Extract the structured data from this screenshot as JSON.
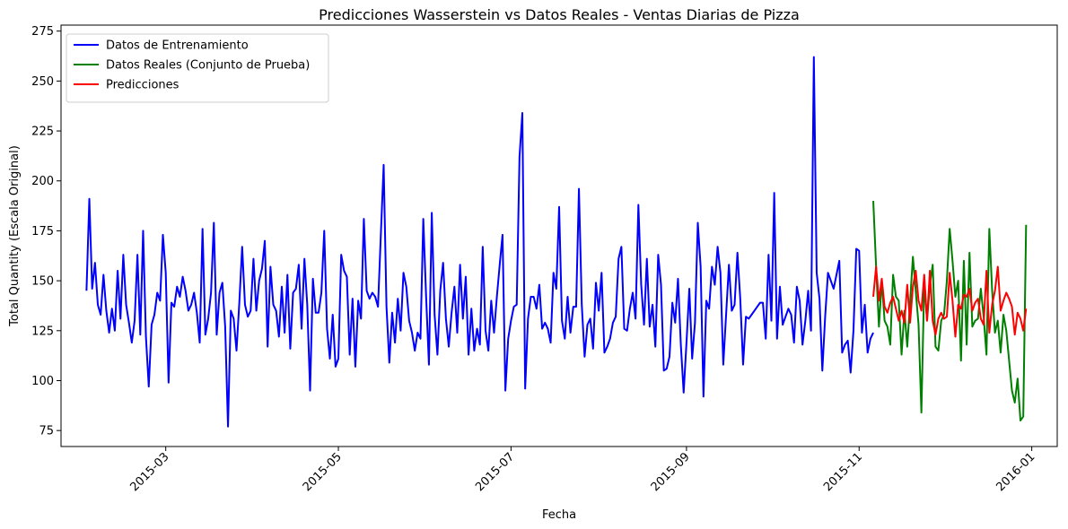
{
  "chart_data": {
    "type": "line",
    "title": "Predicciones Wasserstein vs Datos Reales - Ventas Diarias de Pizza",
    "xlabel": "Fecha",
    "ylabel": "Total Quantity (Escala Original)",
    "xlim": [
      "2015-01-23",
      "2016-01-10"
    ],
    "ylim": [
      67,
      278
    ],
    "yticks": [
      75,
      100,
      125,
      150,
      175,
      200,
      225,
      250,
      275
    ],
    "xticks": [
      {
        "date": "2015-03-01",
        "label": "2015-03"
      },
      {
        "date": "2015-05-01",
        "label": "2015-05"
      },
      {
        "date": "2015-07-01",
        "label": "2015-07"
      },
      {
        "date": "2015-09-01",
        "label": "2015-09"
      },
      {
        "date": "2015-11-01",
        "label": "2015-11"
      },
      {
        "date": "2016-01-01",
        "label": "2016-01"
      }
    ],
    "grid": false,
    "legend_position": "top-left",
    "series": [
      {
        "name": "Datos de Entrenamiento",
        "color": "#0000ff",
        "start": "2015-02-01",
        "values": [
          145,
          191,
          146,
          159,
          138,
          133,
          153,
          135,
          124,
          136,
          125,
          155,
          131,
          163,
          138,
          129,
          119,
          130,
          163,
          123,
          175,
          122,
          97,
          128,
          133,
          144,
          140,
          173,
          154,
          99,
          139,
          137,
          147,
          142,
          152,
          145,
          135,
          138,
          144,
          134,
          119,
          176,
          123,
          131,
          144,
          179,
          123,
          144,
          149,
          127,
          77,
          135,
          131,
          115,
          139,
          167,
          138,
          132,
          135,
          161,
          135,
          150,
          156,
          170,
          117,
          157,
          138,
          135,
          122,
          147,
          124,
          153,
          116,
          144,
          146,
          158,
          126,
          161,
          138,
          95,
          151,
          134,
          134,
          144,
          175,
          126,
          111,
          133,
          107,
          111,
          163,
          155,
          152,
          113,
          141,
          107,
          140,
          131,
          181,
          145,
          141,
          144,
          142,
          137,
          173,
          208,
          137,
          109,
          134,
          119,
          141,
          125,
          154,
          147,
          130,
          124,
          115,
          124,
          121,
          181,
          142,
          108,
          184,
          133,
          113,
          145,
          159,
          131,
          117,
          134,
          147,
          124,
          158,
          131,
          152,
          113,
          136,
          115,
          126,
          118,
          167,
          125,
          115,
          140,
          124,
          142,
          158,
          173,
          95,
          121,
          130,
          137,
          138,
          212,
          234,
          96,
          131,
          142,
          142,
          136,
          148,
          126,
          129,
          126,
          119,
          154,
          146,
          187,
          130,
          121,
          142,
          124,
          137,
          137,
          196,
          138,
          112,
          128,
          131,
          116,
          149,
          135,
          154,
          114,
          117,
          121,
          129,
          132,
          161,
          167,
          126,
          125,
          136,
          144,
          131,
          188,
          148,
          128,
          161,
          127,
          138,
          117,
          163,
          148,
          105,
          106,
          112,
          139,
          129,
          151,
          118,
          94,
          119,
          146,
          111,
          129,
          179,
          157,
          92,
          140,
          136,
          157,
          148,
          167,
          154,
          108,
          133,
          158,
          135,
          138,
          164,
          141,
          108,
          132,
          131,
          133,
          135,
          137,
          139,
          139,
          121,
          163,
          130,
          194,
          121,
          147,
          128,
          132,
          136,
          133,
          119,
          147,
          140,
          118,
          130,
          145,
          125,
          262,
          154,
          141,
          105,
          132,
          154,
          150,
          146,
          153,
          160,
          114,
          118,
          120,
          104,
          125,
          166,
          165,
          124,
          138,
          114,
          121,
          124
        ]
      },
      {
        "name": "Datos Reales (Conjunto de Prueba)",
        "color": "#008000",
        "start": "2015-11-06",
        "values": [
          190,
          157,
          127,
          150,
          130,
          127,
          118,
          153,
          142,
          140,
          113,
          135,
          117,
          139,
          162,
          145,
          128,
          84,
          149,
          130,
          148,
          158,
          117,
          115,
          130,
          133,
          150,
          176,
          160,
          142,
          150,
          110,
          160,
          118,
          164,
          127,
          130,
          131,
          146,
          132,
          113,
          176,
          145,
          124,
          130,
          114,
          133,
          125,
          110,
          95,
          89,
          101,
          80,
          82,
          178
        ]
      },
      {
        "name": "Predicciones",
        "color": "#ff0000",
        "start": "2015-11-06",
        "values": [
          142,
          157,
          140,
          151,
          137,
          134,
          139,
          142,
          136,
          130,
          135,
          129,
          148,
          129,
          147,
          155,
          140,
          135,
          153,
          130,
          155,
          130,
          123,
          131,
          134,
          131,
          132,
          154,
          140,
          122,
          138,
          136,
          143,
          142,
          146,
          135,
          139,
          141,
          131,
          128,
          155,
          124,
          138,
          145,
          157,
          135,
          140,
          144,
          141,
          137,
          123,
          134,
          131,
          125,
          136
        ]
      }
    ]
  }
}
